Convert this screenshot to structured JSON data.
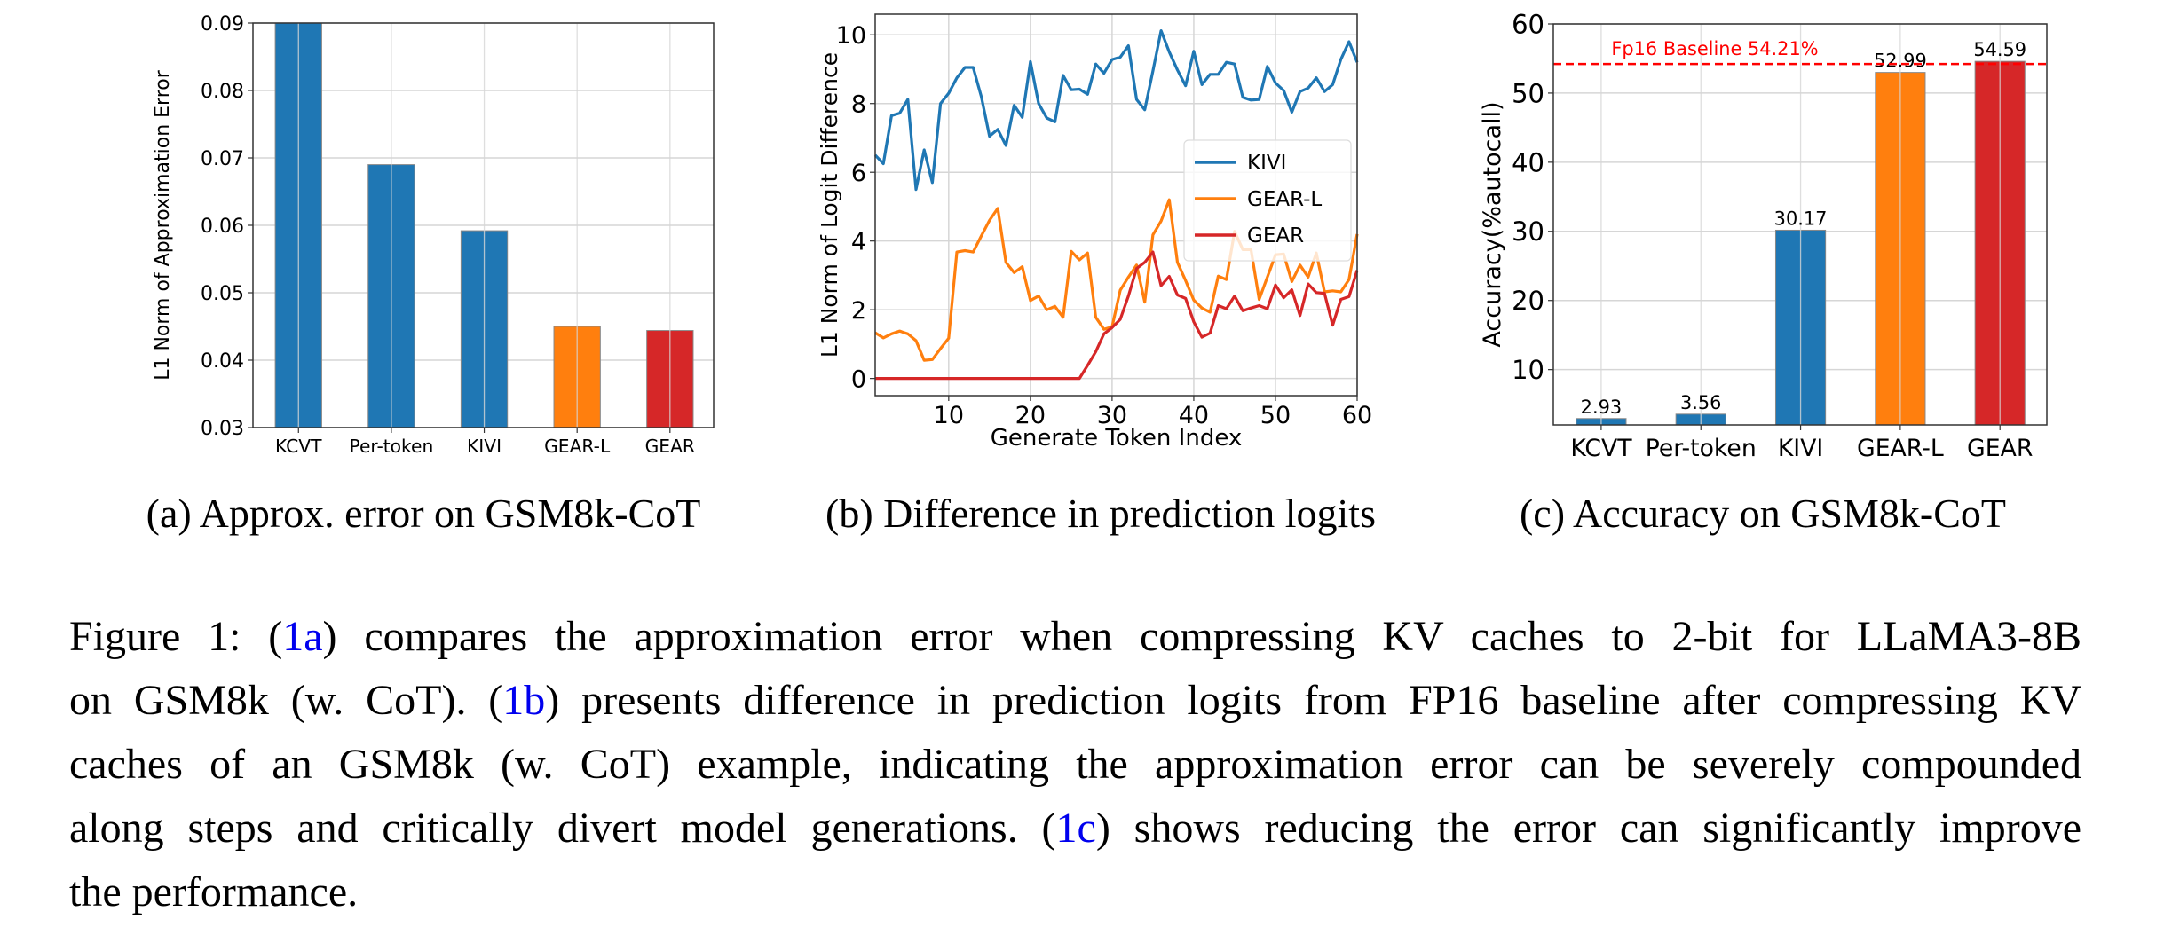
{
  "colors": {
    "blue": "#1f77b4",
    "orange": "#ff7f0e",
    "red": "#d62728",
    "baseline": "#ff0000",
    "link": "#0000ee"
  },
  "subcaptions": {
    "a": "(a) Approx. error on GSM8k-CoT",
    "b": "(b) Difference in prediction logits",
    "c": "(c) Accuracy on GSM8k-CoT"
  },
  "caption": {
    "l1_a": "Figure 1: (",
    "l1_ref": "1a",
    "l1_b": ") compares the approximation error when compressing KV caches to 2-bit for LLaMA3-8B",
    "l2_a": "on GSM8k (w. CoT). (",
    "l2_ref": "1b",
    "l2_b": ") presents difference in prediction logits from FP16 baseline after compressing KV",
    "l3": "caches of an GSM8k (w. CoT) example, indicating the approximation error can be severely compounded",
    "l4_a": "along steps and critically divert model generations. (",
    "l4_ref": "1c",
    "l4_b": ") shows reducing the error can significantly improve",
    "l5": "the performance."
  },
  "chart_data": [
    {
      "type": "bar",
      "title": "",
      "xlabel": "",
      "ylabel": "L1 Norm of Approximation Error",
      "categories": [
        "KCVT",
        "Per-token",
        "KIVI",
        "GEAR-L",
        "GEAR"
      ],
      "values": [
        0.09,
        0.069,
        0.0592,
        0.045,
        0.0444
      ],
      "bar_colors": [
        "#1f77b4",
        "#1f77b4",
        "#1f77b4",
        "#ff7f0e",
        "#d62728"
      ],
      "ylim": [
        0.03,
        0.09
      ],
      "yticks": [
        "0.03",
        "0.04",
        "0.05",
        "0.06",
        "0.07",
        "0.08",
        "0.09"
      ],
      "grid": true
    },
    {
      "type": "line",
      "title": "",
      "xlabel": "Generate Token Index",
      "ylabel": "L1 Norm of Logit Difference",
      "xlim": [
        1,
        60
      ],
      "ylim": [
        -0.5,
        10.6
      ],
      "xticks": [
        "10",
        "20",
        "30",
        "40",
        "50",
        "60"
      ],
      "yticks": [
        "0",
        "2",
        "4",
        "6",
        "8",
        "10"
      ],
      "grid": true,
      "legend": "center-right",
      "series": [
        {
          "name": "KIVI",
          "color": "#1f77b4",
          "values": [
            6.5,
            6.25,
            7.65,
            7.72,
            8.12,
            5.5,
            6.65,
            5.7,
            8.0,
            8.3,
            8.75,
            9.05,
            9.05,
            8.2,
            7.05,
            7.25,
            6.78,
            7.95,
            7.6,
            9.22,
            8.0,
            7.58,
            7.47,
            8.82,
            8.4,
            8.42,
            8.27,
            9.15,
            8.88,
            9.28,
            9.35,
            9.68,
            8.12,
            7.82,
            8.95,
            10.12,
            9.5,
            8.98,
            8.52,
            9.52,
            8.55,
            8.85,
            8.85,
            9.2,
            9.15,
            8.18,
            8.1,
            8.12,
            9.08,
            8.6,
            8.38,
            7.75,
            8.35,
            8.45,
            8.75,
            8.35,
            8.55,
            9.28,
            9.8,
            9.2
          ]
        },
        {
          "name": "GEAR-L",
          "color": "#ff7f0e",
          "values": [
            1.33,
            1.18,
            1.3,
            1.38,
            1.3,
            1.1,
            0.53,
            0.55,
            0.87,
            1.17,
            3.68,
            3.72,
            3.68,
            4.15,
            4.6,
            4.95,
            3.38,
            3.08,
            3.25,
            2.27,
            2.4,
            2.0,
            2.1,
            1.78,
            3.7,
            3.45,
            3.65,
            1.78,
            1.43,
            1.5,
            2.57,
            2.95,
            3.3,
            2.22,
            4.18,
            4.58,
            5.2,
            3.38,
            2.85,
            2.28,
            2.05,
            1.93,
            2.98,
            2.88,
            4.28,
            3.75,
            3.75,
            2.3,
            2.95,
            3.6,
            3.62,
            2.82,
            3.3,
            2.95,
            3.65,
            2.52,
            2.55,
            2.52,
            2.88,
            4.2
          ]
        },
        {
          "name": "GEAR",
          "color": "#d62728",
          "values": [
            0,
            0,
            0,
            0,
            0,
            0,
            0,
            0,
            0,
            0,
            0,
            0,
            0,
            0,
            0,
            0,
            0,
            0,
            0,
            0,
            0,
            0,
            0,
            0,
            0,
            0,
            0.38,
            0.78,
            1.3,
            1.48,
            1.72,
            2.4,
            3.2,
            3.38,
            3.68,
            2.7,
            2.97,
            2.43,
            2.33,
            1.65,
            1.2,
            1.32,
            2.12,
            2.03,
            2.4,
            1.97,
            2.05,
            2.12,
            2.03,
            2.72,
            2.35,
            2.58,
            1.83,
            2.75,
            2.5,
            2.48,
            1.55,
            2.3,
            2.38,
            3.15
          ]
        }
      ]
    },
    {
      "type": "bar",
      "title": "",
      "xlabel": "",
      "ylabel": "Accuracy(%autocall)",
      "categories": [
        "KCVT",
        "Per-token",
        "KIVI",
        "GEAR-L",
        "GEAR"
      ],
      "values": [
        2.93,
        3.56,
        30.17,
        52.99,
        54.59
      ],
      "data_labels": [
        "2.93",
        "3.56",
        "30.17",
        "52.99",
        "54.59"
      ],
      "bar_colors": [
        "#1f77b4",
        "#1f77b4",
        "#1f77b4",
        "#ff7f0e",
        "#d62728"
      ],
      "ylim": [
        2,
        60
      ],
      "yticks": [
        "10",
        "20",
        "30",
        "40",
        "50",
        "60"
      ],
      "grid": true,
      "baseline": {
        "value": 54.21,
        "label": "Fp16 Baseline 54.21%"
      }
    }
  ]
}
